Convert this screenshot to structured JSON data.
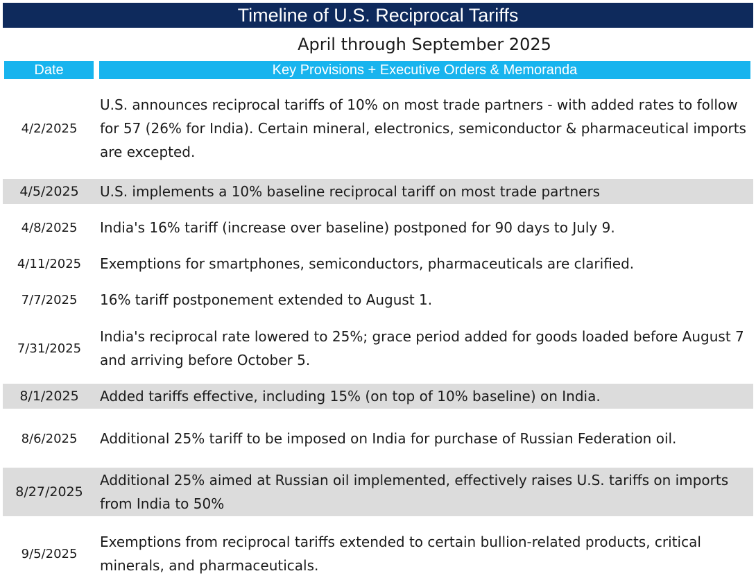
{
  "title": "Timeline of U.S. Reciprocal Tariffs",
  "subtitle": "April through September 2025",
  "headers": {
    "date": "Date",
    "provisions": "Key Provisions + Executive Orders & Memoranda"
  },
  "colors": {
    "title_bg": "#0e2a5c",
    "header_bg": "#18b4ee",
    "shaded_row": "#dcdcdc"
  },
  "rows": [
    {
      "date": "4/2/2025",
      "text": "U.S. announces reciprocal tariffs of 10% on most trade partners - with added rates to follow for 57 (26% for India). Certain mineral, electronics, semiconductor & pharmaceutical imports are excepted.",
      "shaded": false
    },
    {
      "date": "4/5/2025",
      "text": "U.S. implements a 10% baseline reciprocal tariff on most trade partners",
      "shaded": true
    },
    {
      "date": "4/8/2025",
      "text": "India's 16% tariff (increase over baseline) postponed for 90 days to July 9.",
      "shaded": false
    },
    {
      "date": "4/11/2025",
      "text": "Exemptions for smartphones, semiconductors, pharmaceuticals are clarified.",
      "shaded": false
    },
    {
      "date": "7/7/2025",
      "text": "16% tariff postponement extended to August 1.",
      "shaded": false
    },
    {
      "date": "7/31/2025",
      "text": "India's reciprocal rate lowered to 25%; grace period added for goods loaded before August 7 and arriving before October 5.",
      "shaded": false
    },
    {
      "date": "8/1/2025",
      "text": "Added tariffs effective, including 15% (on top of 10% baseline) on India.",
      "shaded": true
    },
    {
      "date": "8/6/2025",
      "text": "Additional 25% tariff to be imposed on India for purchase of Russian Federation oil.",
      "shaded": false
    },
    {
      "date": "8/27/2025",
      "text": "Additional 25% aimed at Russian oil implemented, effectively raises U.S. tariffs on imports from India to 50%",
      "shaded": true
    },
    {
      "date": "9/5/2025",
      "text": "Exemptions from reciprocal tariffs extended to certain bullion-related products, critical minerals, and pharmaceuticals.",
      "shaded": false
    }
  ]
}
